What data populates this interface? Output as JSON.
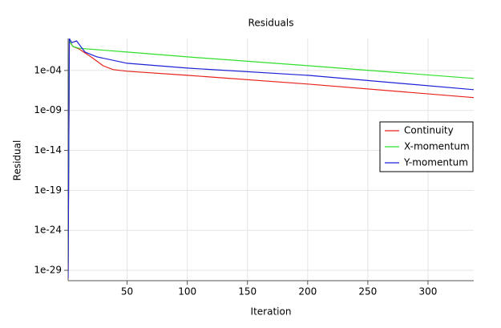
{
  "chart_data": {
    "type": "line",
    "title": "Residuals",
    "x_label": "Iteration",
    "y_label": "Residual",
    "log_y": true,
    "grid": true,
    "legend": "right",
    "xlim": [
      1,
      338
    ],
    "xticks": [
      50,
      100,
      150,
      200,
      250,
      300
    ],
    "ylim": [
      5e-31,
      1
    ],
    "yticks": [
      {
        "value": 1e-29,
        "label": "1e-29"
      },
      {
        "value": 1e-24,
        "label": "1e-24"
      },
      {
        "value": 1e-19,
        "label": "1e-19"
      },
      {
        "value": 1e-14,
        "label": "1e-14"
      },
      {
        "value": 1e-09,
        "label": "1e-09"
      },
      {
        "value": 0.0001,
        "label": "1e-04"
      }
    ],
    "series": [
      {
        "name": "Continuity",
        "color": "#e8221c",
        "x": [
          1,
          2,
          5,
          10,
          20,
          30,
          38,
          50,
          100,
          200,
          338
        ],
        "values": [
          1e-29,
          0.5,
          0.1,
          0.05,
          0.005,
          0.0004,
          0.00013,
          8e-05,
          2.5e-05,
          2e-06,
          4e-08
        ]
      },
      {
        "name": "X-momentum",
        "color": "#2fe02a",
        "x": [
          1,
          2,
          5,
          10,
          50,
          100,
          200,
          338
        ],
        "values": [
          1e-28,
          0.5,
          0.1,
          0.06,
          0.02,
          0.005,
          0.0004,
          1e-05
        ]
      },
      {
        "name": "Y-momentum",
        "color": "#1c22d6",
        "x": [
          1,
          2,
          4,
          8,
          15,
          20,
          25,
          50,
          100,
          200,
          338
        ],
        "values": [
          1e-30,
          1,
          0.3,
          0.5,
          0.02,
          0.01,
          0.005,
          0.0008,
          0.0002,
          2.5e-05,
          4e-07
        ]
      }
    ]
  }
}
